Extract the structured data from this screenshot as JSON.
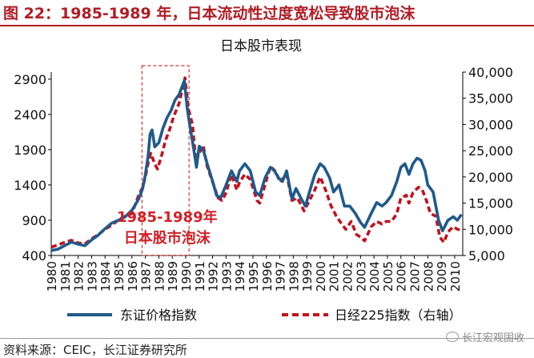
{
  "figure_title": "图 22：1985-1989 年，日本流动性过度宽松导致股市泡沫",
  "source": "资料来源：CEIC，长江证券研究所",
  "watermark": "长江宏观固收",
  "colors": {
    "topix": "#1f5a8a",
    "nikkei": "#c1121f",
    "accent": "#b01c24"
  },
  "chart_data": {
    "type": "line",
    "title": "日本股市表现",
    "annotation": {
      "lines": [
        "1985-1989年",
        "日本股市泡沫"
      ],
      "x_range": [
        1986.75,
        1990.25
      ]
    },
    "x_ticks": [
      "1980",
      "1981",
      "1982",
      "1983",
      "1984",
      "1985",
      "1986",
      "1987",
      "1988",
      "1989",
      "1990",
      "1991",
      "1992",
      "1993",
      "1994",
      "1995",
      "1996",
      "1997",
      "1998",
      "1999",
      "2000",
      "2001",
      "2002",
      "2003",
      "2004",
      "2005",
      "2006",
      "2007",
      "2008",
      "2009",
      "2010"
    ],
    "xlim": [
      1980,
      2010.6
    ],
    "y_left": {
      "ticks": [
        "400",
        "900",
        "1400",
        "1900",
        "2400",
        "2900"
      ],
      "lim": [
        400,
        3000
      ]
    },
    "y_right": {
      "ticks": [
        "5,000",
        "10,000",
        "15,000",
        "20,000",
        "25,000",
        "30,000",
        "35,000",
        "40,000"
      ],
      "lim": [
        5000,
        40000
      ]
    },
    "legend_position": "bottom",
    "series": [
      {
        "name": "东证价格指数",
        "axis": "left",
        "points": [
          [
            1980.0,
            470
          ],
          [
            1980.5,
            490
          ],
          [
            1981.0,
            540
          ],
          [
            1981.5,
            590
          ],
          [
            1982.0,
            560
          ],
          [
            1982.5,
            540
          ],
          [
            1983.0,
            620
          ],
          [
            1983.5,
            690
          ],
          [
            1984.0,
            780
          ],
          [
            1984.5,
            860
          ],
          [
            1985.0,
            900
          ],
          [
            1985.5,
            950
          ],
          [
            1986.0,
            1040
          ],
          [
            1986.5,
            1200
          ],
          [
            1986.8,
            1350
          ],
          [
            1987.0,
            1550
          ],
          [
            1987.2,
            1800
          ],
          [
            1987.35,
            2120
          ],
          [
            1987.5,
            2180
          ],
          [
            1987.7,
            1940
          ],
          [
            1988.0,
            2000
          ],
          [
            1988.3,
            2200
          ],
          [
            1988.6,
            2350
          ],
          [
            1988.9,
            2450
          ],
          [
            1989.2,
            2600
          ],
          [
            1989.5,
            2680
          ],
          [
            1989.9,
            2880
          ],
          [
            1990.1,
            2500
          ],
          [
            1990.3,
            2250
          ],
          [
            1990.6,
            1900
          ],
          [
            1990.8,
            1650
          ],
          [
            1991.0,
            1950
          ],
          [
            1991.3,
            1900
          ],
          [
            1991.6,
            1700
          ],
          [
            1992.0,
            1450
          ],
          [
            1992.3,
            1250
          ],
          [
            1992.6,
            1220
          ],
          [
            1993.0,
            1400
          ],
          [
            1993.4,
            1600
          ],
          [
            1993.8,
            1450
          ],
          [
            1994.0,
            1600
          ],
          [
            1994.4,
            1700
          ],
          [
            1994.8,
            1600
          ],
          [
            1995.2,
            1300
          ],
          [
            1995.5,
            1250
          ],
          [
            1995.9,
            1500
          ],
          [
            1996.3,
            1650
          ],
          [
            1996.6,
            1600
          ],
          [
            1996.9,
            1500
          ],
          [
            1997.2,
            1450
          ],
          [
            1997.5,
            1600
          ],
          [
            1997.9,
            1200
          ],
          [
            1998.2,
            1350
          ],
          [
            1998.6,
            1200
          ],
          [
            1998.9,
            1100
          ],
          [
            1999.2,
            1300
          ],
          [
            1999.6,
            1550
          ],
          [
            2000.0,
            1700
          ],
          [
            2000.3,
            1650
          ],
          [
            2000.7,
            1500
          ],
          [
            2001.0,
            1300
          ],
          [
            2001.4,
            1400
          ],
          [
            2001.8,
            1100
          ],
          [
            2002.2,
            1100
          ],
          [
            2002.6,
            1000
          ],
          [
            2003.0,
            870
          ],
          [
            2003.3,
            800
          ],
          [
            2003.8,
            1000
          ],
          [
            2004.2,
            1150
          ],
          [
            2004.6,
            1100
          ],
          [
            2004.9,
            1150
          ],
          [
            2005.3,
            1250
          ],
          [
            2005.7,
            1450
          ],
          [
            2006.0,
            1650
          ],
          [
            2006.3,
            1700
          ],
          [
            2006.6,
            1550
          ],
          [
            2006.9,
            1700
          ],
          [
            2007.2,
            1780
          ],
          [
            2007.5,
            1750
          ],
          [
            2007.8,
            1600
          ],
          [
            2008.0,
            1400
          ],
          [
            2008.4,
            1300
          ],
          [
            2008.8,
            900
          ],
          [
            2009.1,
            750
          ],
          [
            2009.5,
            900
          ],
          [
            2009.9,
            950
          ],
          [
            2010.2,
            900
          ],
          [
            2010.5,
            980
          ]
        ]
      },
      {
        "name": "日经225指数（右轴）",
        "axis": "right",
        "points": [
          [
            1980.0,
            6600
          ],
          [
            1980.5,
            7000
          ],
          [
            1981.0,
            7500
          ],
          [
            1981.5,
            7900
          ],
          [
            1982.0,
            7400
          ],
          [
            1982.5,
            7200
          ],
          [
            1983.0,
            8200
          ],
          [
            1983.5,
            9000
          ],
          [
            1984.0,
            10000
          ],
          [
            1984.5,
            10800
          ],
          [
            1985.0,
            11800
          ],
          [
            1985.5,
            12500
          ],
          [
            1986.0,
            13000
          ],
          [
            1986.5,
            16500
          ],
          [
            1986.8,
            18000
          ],
          [
            1987.0,
            20000
          ],
          [
            1987.2,
            22500
          ],
          [
            1987.4,
            24500
          ],
          [
            1987.7,
            22500
          ],
          [
            1987.9,
            21500
          ],
          [
            1988.2,
            24000
          ],
          [
            1988.5,
            27000
          ],
          [
            1988.8,
            29000
          ],
          [
            1989.1,
            31500
          ],
          [
            1989.5,
            34000
          ],
          [
            1989.95,
            38900
          ],
          [
            1990.2,
            33000
          ],
          [
            1990.5,
            30000
          ],
          [
            1990.75,
            23000
          ],
          [
            1991.0,
            24500
          ],
          [
            1991.3,
            26000
          ],
          [
            1991.6,
            22000
          ],
          [
            1992.0,
            19000
          ],
          [
            1992.4,
            16000
          ],
          [
            1992.7,
            15500
          ],
          [
            1993.0,
            17000
          ],
          [
            1993.4,
            20500
          ],
          [
            1993.8,
            17500
          ],
          [
            1994.0,
            19000
          ],
          [
            1994.4,
            20500
          ],
          [
            1994.8,
            19500
          ],
          [
            1995.3,
            15500
          ],
          [
            1995.5,
            15000
          ],
          [
            1995.9,
            18500
          ],
          [
            1996.3,
            22000
          ],
          [
            1996.7,
            21000
          ],
          [
            1997.0,
            19000
          ],
          [
            1997.5,
            20500
          ],
          [
            1997.9,
            15500
          ],
          [
            1998.3,
            16000
          ],
          [
            1998.8,
            13500
          ],
          [
            1999.2,
            15500
          ],
          [
            1999.6,
            17500
          ],
          [
            2000.0,
            20000
          ],
          [
            2000.4,
            17500
          ],
          [
            2000.8,
            14500
          ],
          [
            2001.2,
            12500
          ],
          [
            2001.6,
            11000
          ],
          [
            2001.9,
            10000
          ],
          [
            2002.3,
            11500
          ],
          [
            2002.7,
            9000
          ],
          [
            2003.0,
            8500
          ],
          [
            2003.3,
            7800
          ],
          [
            2003.8,
            10500
          ],
          [
            2004.2,
            11500
          ],
          [
            2004.6,
            11000
          ],
          [
            2004.9,
            11500
          ],
          [
            2005.3,
            11500
          ],
          [
            2005.7,
            13000
          ],
          [
            2006.0,
            16000
          ],
          [
            2006.4,
            16500
          ],
          [
            2006.6,
            15000
          ],
          [
            2006.9,
            17000
          ],
          [
            2007.3,
            18000
          ],
          [
            2007.6,
            17500
          ],
          [
            2007.9,
            15500
          ],
          [
            2008.2,
            13000
          ],
          [
            2008.6,
            12500
          ],
          [
            2008.9,
            8500
          ],
          [
            2009.2,
            7500
          ],
          [
            2009.5,
            9500
          ],
          [
            2009.9,
            10500
          ],
          [
            2010.2,
            10000
          ],
          [
            2010.5,
            9800
          ]
        ]
      }
    ]
  }
}
